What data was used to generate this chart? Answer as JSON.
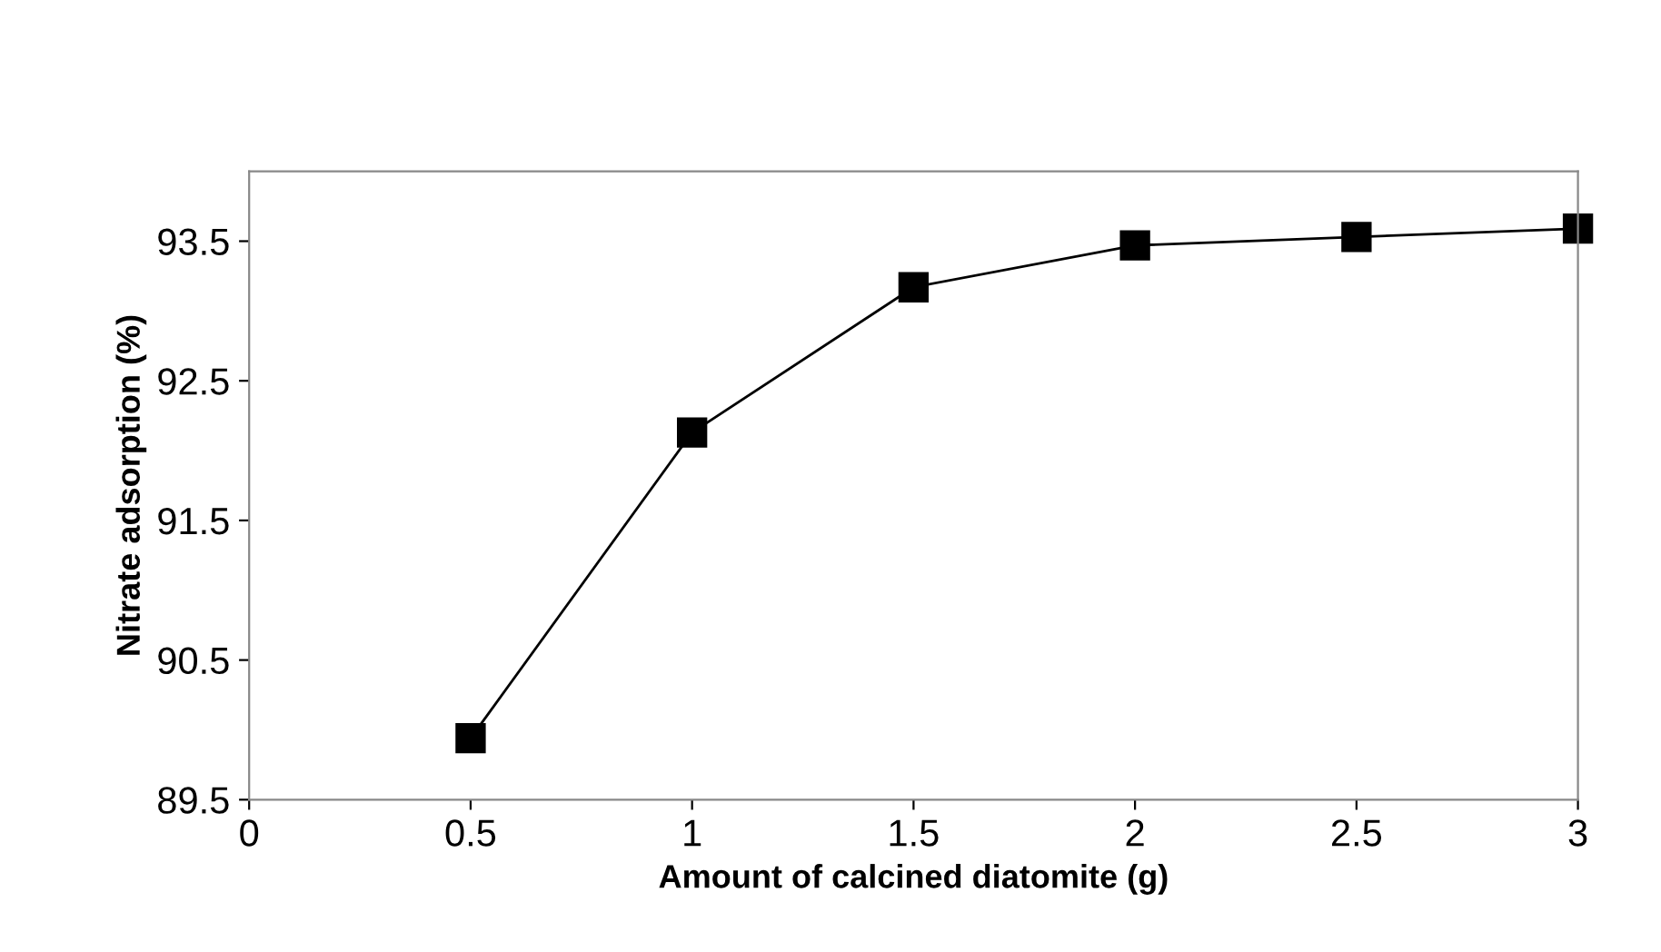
{
  "chart_data": {
    "type": "line",
    "xlabel": "Amount of calcined diatomite (g)",
    "ylabel": "Nitrate adsorption (%)",
    "x": [
      0.5,
      1,
      1.5,
      2,
      2.5,
      3
    ],
    "series": [
      {
        "color": "#000000",
        "values": [
          89.94,
          92.13,
          93.17,
          93.47,
          93.53,
          93.59
        ]
      }
    ],
    "xlim": [
      0,
      3
    ],
    "xticks": [
      0,
      0.5,
      1,
      1.5,
      2,
      2.5,
      3
    ],
    "ylim": [
      89.5,
      94
    ],
    "yticks": [
      89.5,
      90.5,
      91.5,
      92.5,
      93.5
    ],
    "grid": false,
    "legend": false,
    "marker": "square",
    "line_style": "solid"
  }
}
